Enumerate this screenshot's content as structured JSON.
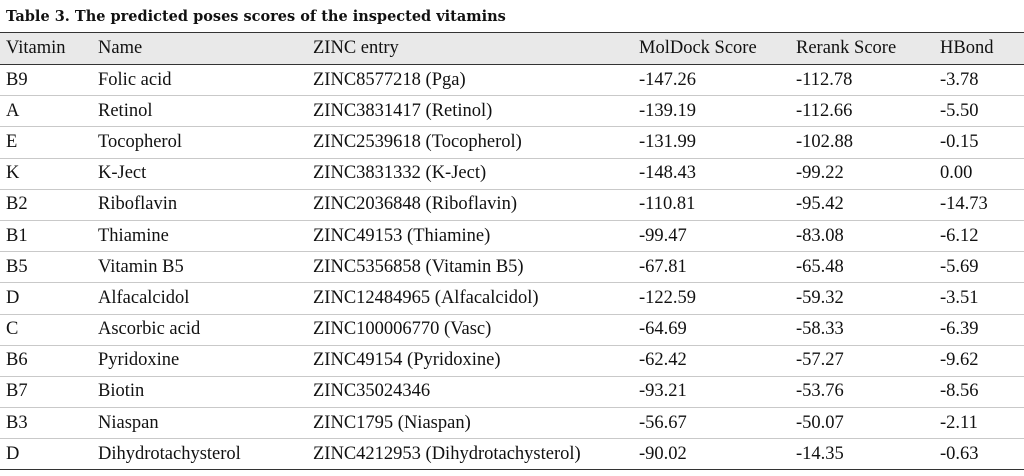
{
  "caption": "Table 3. The predicted poses scores of the inspected vitamins",
  "columns": [
    "Vitamin",
    "Name",
    "ZINC entry",
    "MolDock Score",
    "Rerank Score",
    "HBond"
  ],
  "rows": [
    [
      "B9",
      "Folic acid",
      "ZINC8577218 (Pga)",
      "-147.26",
      "-112.78",
      "-3.78"
    ],
    [
      "A",
      "Retinol",
      "ZINC3831417 (Retinol)",
      "-139.19",
      "-112.66",
      "-5.50"
    ],
    [
      "E",
      "Tocopherol",
      "ZINC2539618 (Tocopherol)",
      "-131.99",
      "-102.88",
      "-0.15"
    ],
    [
      "K",
      "K-Ject",
      "ZINC3831332 (K-Ject)",
      "-148.43",
      "-99.22",
      "0.00"
    ],
    [
      "B2",
      "Riboflavin",
      "ZINC2036848 (Riboflavin)",
      "-110.81",
      "-95.42",
      "-14.73"
    ],
    [
      "B1",
      "Thiamine",
      "ZINC49153 (Thiamine)",
      "-99.47",
      "-83.08",
      "-6.12"
    ],
    [
      "B5",
      "Vitamin B5",
      "ZINC5356858 (Vitamin B5)",
      "-67.81",
      "-65.48",
      "-5.69"
    ],
    [
      "D",
      "Alfacalcidol",
      "ZINC12484965 (Alfacalcidol)",
      "-122.59",
      "-59.32",
      "-3.51"
    ],
    [
      "C",
      "Ascorbic acid",
      "ZINC100006770 (Vasc)",
      "-64.69",
      "-58.33",
      "-6.39"
    ],
    [
      "B6",
      "Pyridoxine",
      "ZINC49154 (Pyridoxine)",
      "-62.42",
      "-57.27",
      "-9.62"
    ],
    [
      "B7",
      "Biotin",
      "ZINC35024346",
      "-93.21",
      "-53.76",
      "-8.56"
    ],
    [
      "B3",
      "Niaspan",
      "ZINC1795 (Niaspan)",
      "-56.67",
      "-50.07",
      "-2.11"
    ],
    [
      "D",
      "Dihydrotachysterol",
      "ZINC4212953 (Dihydrotachysterol)",
      "-90.02",
      "-14.35",
      "-0.63"
    ]
  ]
}
